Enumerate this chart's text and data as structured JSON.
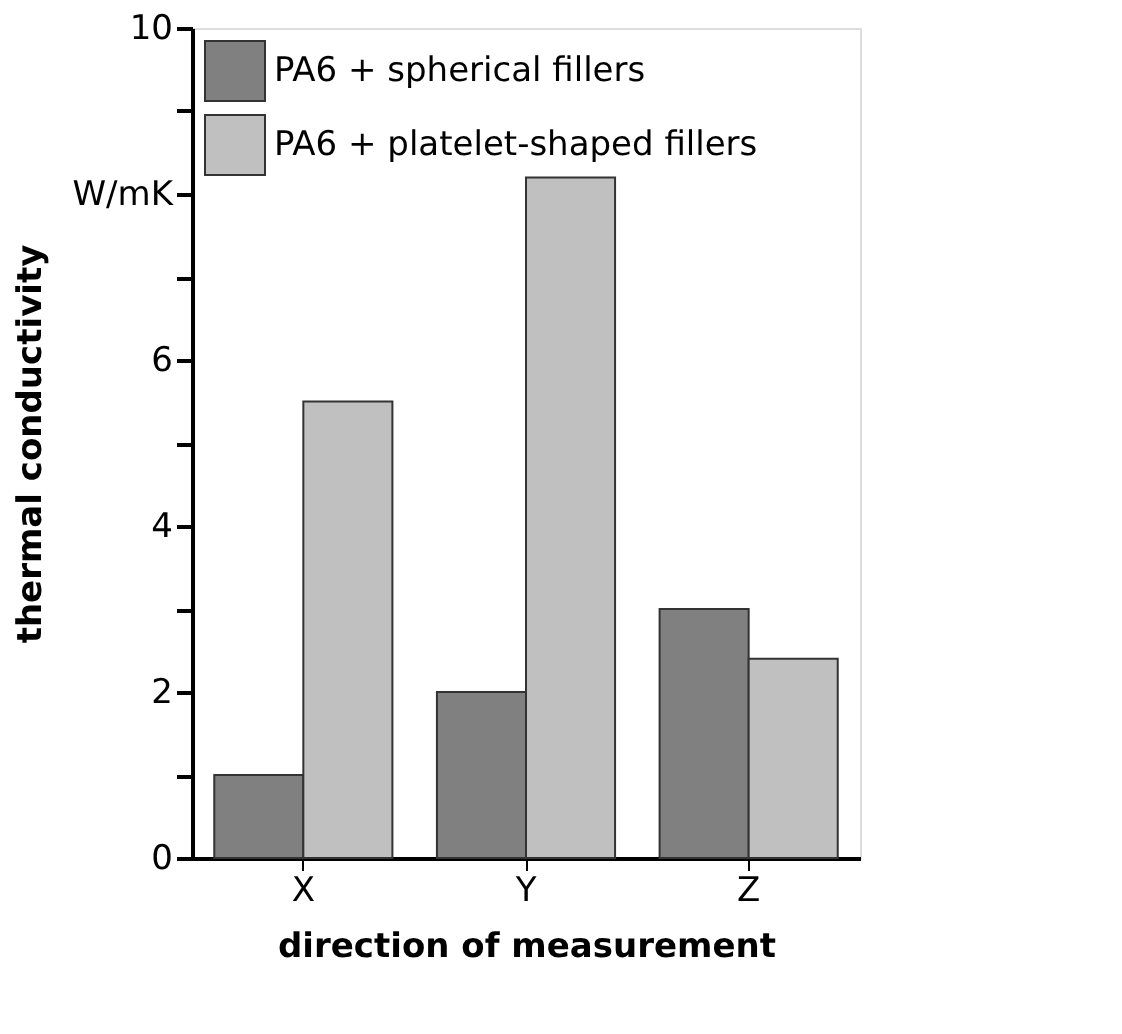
{
  "chart_data": {
    "type": "bar",
    "xlabel": "direction of measurement",
    "ylabel": "thermal conductivity",
    "categories": [
      "X",
      "Y",
      "Z"
    ],
    "series": [
      {
        "name": "PA6 + spherical fillers",
        "color": "#808080",
        "values": [
          1,
          2,
          3
        ]
      },
      {
        "name": "PA6 + platelet-shaped fillers",
        "color": "#c0c0c0",
        "values": [
          5.5,
          8.2,
          2.4
        ]
      }
    ],
    "ylim": [
      0,
      10
    ],
    "yticks": [
      0,
      {
        "value": 1,
        "label": null
      },
      2,
      {
        "value": 3,
        "label": null
      },
      4,
      {
        "value": 5,
        "label": null
      },
      6,
      {
        "value": 7,
        "label": null
      },
      {
        "value": 8,
        "label": "W/mK"
      },
      {
        "value": 9,
        "label": null
      },
      10
    ],
    "grid": false,
    "legend": "top left"
  }
}
